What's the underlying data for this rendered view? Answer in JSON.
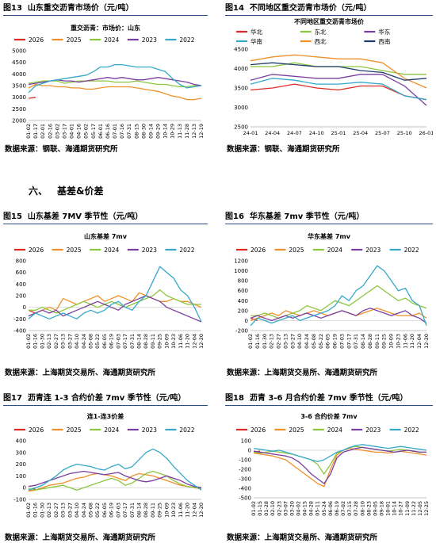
{
  "figures": [
    {
      "number": "图13",
      "title": "山东重交沥青市场价（元/吨）"
    },
    {
      "number": "图14",
      "title": "不同地区重交沥青市场价（元/吨）"
    },
    {
      "number": "图15",
      "title": "山东基差 7MV  季节性（元/吨）"
    },
    {
      "number": "图16",
      "title": "华东基差 7mv  季节性（元/吨）"
    },
    {
      "number": "图17",
      "title": "沥青连 1-3 合约价差 7mv  季节性（元/吨）"
    },
    {
      "number": "图18",
      "title": "沥青 3-6 月合约价差 7mv  季节性（元/吨）"
    }
  ],
  "sources": {
    "row1_left": "数据来源：钢联、海通期货研究所",
    "row1_right": "数据来源：钢联、海通期货研究所",
    "row2_left": "数据来源：上海期货交易所、海通期货研究所",
    "row2_right": "数据来源：上海期货交易所、海通期货研究所",
    "row3_left": "数据来源：上海期货交易所、海通期货研究所",
    "row3_right": "数据来源：上海期货交易所、海通期货研究所"
  },
  "section": {
    "number": "六、",
    "title": "基差&价差"
  },
  "colors": {
    "2026": "#e02a2a",
    "2025": "#f0902a",
    "2024": "#8cc63e",
    "2023": "#7a3fa0",
    "2022": "#35a9c8",
    "华北": "#e02a2a",
    "东北": "#8cc63e",
    "华东": "#7a3fa0",
    "华南": "#35a9c8",
    "西北": "#f0902a",
    "西南": "#1f3b6e"
  },
  "chart_data": [
    {
      "id": "c13",
      "type": "line",
      "title": "重交沥青：市场价：山东",
      "categories": [
        "01-02",
        "01-17",
        "02-01",
        "02-16",
        "03-02",
        "03-17",
        "04-01",
        "04-16",
        "05-02",
        "05-17",
        "06-01",
        "06-16",
        "07-01",
        "07-16",
        "07-31",
        "08-15",
        "08-30",
        "09-14",
        "09-29",
        "10-14",
        "10-29",
        "11-13",
        "11-28",
        "12-13",
        "12-19"
      ],
      "ylim": [
        2000,
        5000
      ],
      "yticks": [
        2000,
        2500,
        3000,
        3500,
        4000,
        4500,
        5000
      ],
      "series": [
        {
          "name": "2026",
          "values": [
            2950,
            3000,
            null,
            null,
            null,
            null,
            null,
            null,
            null,
            null,
            null,
            null,
            null,
            null,
            null,
            null,
            null,
            null,
            null,
            null,
            null,
            null,
            null,
            null,
            null
          ]
        },
        {
          "name": "2025",
          "values": [
            3400,
            3550,
            3500,
            3500,
            3450,
            3450,
            3400,
            3400,
            3350,
            3350,
            3400,
            3450,
            3450,
            3450,
            3450,
            3400,
            3350,
            3300,
            3250,
            3150,
            3050,
            3000,
            2900,
            2900,
            2950
          ]
        },
        {
          "name": "2024",
          "values": [
            3600,
            3650,
            3700,
            3700,
            3700,
            3600,
            3650,
            3700,
            3700,
            3700,
            3700,
            3700,
            3650,
            3650,
            3650,
            3700,
            3650,
            3600,
            3550,
            3550,
            3500,
            3450,
            3450,
            3500,
            3500
          ]
        },
        {
          "name": "2023",
          "values": [
            3550,
            3600,
            3650,
            3700,
            3750,
            3700,
            3700,
            3650,
            3700,
            3750,
            3800,
            3850,
            3800,
            3850,
            3800,
            3750,
            3750,
            3800,
            3850,
            3800,
            3750,
            3700,
            3650,
            3550,
            3500
          ]
        },
        {
          "name": "2022",
          "values": [
            3200,
            3500,
            3600,
            3700,
            3750,
            3800,
            3850,
            3900,
            3950,
            4100,
            4300,
            4300,
            4400,
            4400,
            4350,
            4300,
            4300,
            4300,
            4200,
            4100,
            3800,
            3550,
            3400,
            3450,
            3500
          ]
        }
      ]
    },
    {
      "id": "c14",
      "type": "line",
      "title": "不同地区重交沥青市场价",
      "categories": [
        "24-01",
        "24-04",
        "24-07",
        "24-10",
        "25-01",
        "25-04",
        "25-07",
        "25-10",
        "26-01"
      ],
      "ylim": [
        2500,
        4500
      ],
      "yticks": [
        2500,
        3000,
        3500,
        4000,
        4500
      ],
      "series": [
        {
          "name": "华北",
          "values": [
            3450,
            3500,
            3600,
            3500,
            3450,
            3550,
            3550,
            3300,
            3200
          ]
        },
        {
          "name": "东北",
          "values": [
            4050,
            4050,
            4150,
            4050,
            4050,
            4050,
            3950,
            3850,
            3850
          ]
        },
        {
          "name": "华东",
          "values": [
            3700,
            3850,
            3800,
            3750,
            3750,
            3850,
            3850,
            3550,
            3050
          ]
        },
        {
          "name": "华南",
          "values": [
            3600,
            3750,
            3700,
            3600,
            3600,
            3650,
            3600,
            3300,
            3200
          ]
        },
        {
          "name": "西北",
          "values": [
            4200,
            4300,
            4350,
            4300,
            4250,
            4250,
            4150,
            3750,
            3500
          ]
        },
        {
          "name": "西南",
          "values": [
            4100,
            4150,
            4100,
            4050,
            4050,
            3950,
            3900,
            3700,
            3750
          ]
        }
      ]
    },
    {
      "id": "c15",
      "type": "line",
      "title": "山东基差 7mv",
      "categories": [
        "01-02",
        "01-16",
        "01-30",
        "02-13",
        "02-27",
        "03-13",
        "03-27",
        "04-10",
        "04-24",
        "05-08",
        "05-22",
        "06-05",
        "06-19",
        "07-03",
        "07-17",
        "07-31",
        "08-14",
        "08-28",
        "09-11",
        "09-25",
        "10-09",
        "10-23",
        "11-06",
        "11-20",
        "12-04",
        "12-20"
      ],
      "ylim": [
        -400,
        800
      ],
      "yticks": [
        -400,
        -200,
        0,
        200,
        400,
        600,
        800
      ],
      "series": [
        {
          "name": "2026",
          "values": [
            -50,
            -100,
            null,
            null,
            null,
            null,
            null,
            null,
            null,
            null,
            null,
            null,
            null,
            null,
            null,
            null,
            null,
            null,
            null,
            null,
            null,
            null,
            null,
            null,
            null,
            null
          ]
        },
        {
          "name": "2025",
          "values": [
            -150,
            -100,
            -50,
            0,
            -50,
            150,
            100,
            50,
            100,
            150,
            200,
            100,
            150,
            200,
            150,
            100,
            250,
            200,
            150,
            100,
            100,
            150,
            100,
            100,
            50,
            0
          ]
        },
        {
          "name": "2024",
          "values": [
            -50,
            -50,
            0,
            -50,
            -100,
            -50,
            0,
            50,
            100,
            50,
            0,
            50,
            100,
            50,
            0,
            50,
            100,
            150,
            200,
            300,
            200,
            150,
            100,
            50,
            50,
            50
          ]
        },
        {
          "name": "2023",
          "values": [
            -150,
            -100,
            -50,
            -100,
            -50,
            -150,
            -100,
            -50,
            0,
            50,
            100,
            50,
            0,
            -50,
            50,
            100,
            150,
            200,
            150,
            100,
            0,
            -50,
            -100,
            -150,
            -200,
            -250
          ]
        },
        {
          "name": "2022",
          "values": [
            -200,
            -100,
            -150,
            -200,
            -150,
            -100,
            -150,
            -200,
            -100,
            -50,
            -100,
            -50,
            50,
            100,
            0,
            -50,
            100,
            200,
            450,
            700,
            600,
            500,
            300,
            200,
            0,
            -250
          ]
        }
      ]
    },
    {
      "id": "c16",
      "type": "line",
      "title": "华东基差 7mv",
      "categories": [
        "01-02",
        "01-16",
        "01-30",
        "02-13",
        "02-27",
        "03-13",
        "03-27",
        "04-10",
        "04-24",
        "05-08",
        "05-22",
        "06-05",
        "06-19",
        "07-03",
        "07-17",
        "07-31",
        "08-14",
        "08-28",
        "09-11",
        "09-25",
        "10-09",
        "10-23",
        "11-06",
        "11-20",
        "12-04",
        "12-20"
      ],
      "ylim": [
        -200,
        1200
      ],
      "yticks": [
        -200,
        0,
        200,
        400,
        600,
        800,
        1000,
        1200
      ],
      "series": [
        {
          "name": "2026",
          "values": [
            50,
            0,
            null,
            null,
            null,
            null,
            null,
            null,
            null,
            null,
            null,
            null,
            null,
            null,
            null,
            null,
            null,
            null,
            null,
            null,
            null,
            null,
            null,
            null,
            null,
            null
          ]
        },
        {
          "name": "2025",
          "values": [
            0,
            50,
            100,
            150,
            100,
            200,
            150,
            100,
            150,
            200,
            150,
            100,
            150,
            200,
            150,
            100,
            150,
            200,
            250,
            200,
            150,
            100,
            100,
            100,
            150,
            50
          ]
        },
        {
          "name": "2024",
          "values": [
            100,
            100,
            150,
            100,
            50,
            100,
            150,
            200,
            300,
            250,
            200,
            300,
            400,
            350,
            300,
            400,
            500,
            600,
            700,
            600,
            500,
            400,
            450,
            350,
            300,
            250
          ]
        },
        {
          "name": "2023",
          "values": [
            50,
            100,
            50,
            0,
            50,
            100,
            50,
            100,
            150,
            100,
            50,
            100,
            150,
            200,
            150,
            100,
            200,
            250,
            200,
            150,
            100,
            150,
            200,
            100,
            50,
            -50
          ]
        },
        {
          "name": "2022",
          "values": [
            -100,
            50,
            0,
            -50,
            0,
            50,
            100,
            0,
            50,
            100,
            150,
            200,
            300,
            500,
            400,
            600,
            700,
            900,
            1100,
            1000,
            800,
            600,
            650,
            400,
            300,
            -100
          ]
        }
      ]
    },
    {
      "id": "c17",
      "type": "line",
      "title": "连1-连3价差",
      "categories": [
        "01-02",
        "01-16",
        "01-30",
        "02-13",
        "02-27",
        "03-13",
        "03-27",
        "04-10",
        "04-24",
        "05-08",
        "05-22",
        "06-05",
        "06-19",
        "07-03",
        "07-17",
        "07-31",
        "08-14",
        "08-28",
        "09-11",
        "09-25",
        "10-09",
        "10-23",
        "11-06",
        "11-20",
        "12-04",
        "12-20"
      ],
      "ylim": [
        -100,
        400
      ],
      "yticks": [
        -100,
        0,
        100,
        200,
        300,
        400
      ],
      "series": [
        {
          "name": "2026",
          "values": [
            -20,
            -10,
            null,
            null,
            null,
            null,
            null,
            null,
            null,
            null,
            null,
            null,
            null,
            null,
            null,
            null,
            null,
            null,
            null,
            null,
            null,
            null,
            null,
            null,
            null,
            null
          ]
        },
        {
          "name": "2025",
          "values": [
            -30,
            -20,
            0,
            20,
            30,
            40,
            60,
            80,
            90,
            110,
            120,
            110,
            100,
            80,
            60,
            100,
            120,
            110,
            100,
            80,
            60,
            40,
            20,
            10,
            0,
            -10
          ]
        },
        {
          "name": "2024",
          "values": [
            -10,
            -20,
            -10,
            0,
            10,
            20,
            0,
            -20,
            0,
            20,
            40,
            60,
            80,
            60,
            20,
            40,
            80,
            120,
            140,
            120,
            100,
            60,
            30,
            10,
            0,
            0
          ]
        },
        {
          "name": "2023",
          "values": [
            10,
            20,
            40,
            60,
            80,
            100,
            120,
            130,
            140,
            130,
            120,
            110,
            120,
            130,
            100,
            80,
            60,
            50,
            60,
            80,
            100,
            80,
            60,
            30,
            10,
            0
          ]
        },
        {
          "name": "2022",
          "values": [
            -20,
            0,
            20,
            60,
            100,
            150,
            180,
            200,
            190,
            180,
            160,
            150,
            180,
            200,
            160,
            180,
            240,
            300,
            330,
            300,
            250,
            180,
            120,
            60,
            20,
            -20
          ]
        }
      ]
    },
    {
      "id": "c18",
      "type": "line",
      "title": "3-6 合约价差 7mv",
      "categories": [
        "01-02",
        "01-15",
        "01-28",
        "02-10",
        "02-23",
        "03-07",
        "03-20",
        "04-02",
        "04-15",
        "04-28",
        "05-11",
        "05-24",
        "06-06",
        "06-19",
        "07-02",
        "07-15",
        "07-28",
        "08-10",
        "08-23",
        "09-05",
        "09-18",
        "10-01",
        "10-14",
        "10-27",
        "11-09",
        "11-22",
        "12-05",
        "12-25"
      ],
      "ylim": [
        -500,
        100
      ],
      "yticks": [
        -500,
        -400,
        -300,
        -200,
        -100,
        0,
        100
      ],
      "series": [
        {
          "name": "2026",
          "values": [
            -20,
            -10,
            null,
            null,
            null,
            null,
            null,
            null,
            null,
            null,
            null,
            null,
            null,
            null,
            null,
            null,
            null,
            null,
            null,
            null,
            null,
            null,
            null,
            null,
            null,
            null,
            null,
            null
          ]
        },
        {
          "name": "2025",
          "values": [
            -30,
            -40,
            -50,
            -60,
            -80,
            -100,
            -150,
            -200,
            -250,
            -300,
            -350,
            -380,
            -200,
            -50,
            0,
            20,
            10,
            0,
            -10,
            -20,
            -20,
            -30,
            -20,
            -10,
            -20,
            -30,
            -40,
            -50
          ]
        },
        {
          "name": "2024",
          "values": [
            -20,
            -30,
            -20,
            -10,
            -20,
            -30,
            -40,
            -60,
            -80,
            -100,
            -150,
            -250,
            -150,
            -30,
            0,
            30,
            40,
            30,
            20,
            10,
            0,
            -10,
            0,
            10,
            0,
            -10,
            -20,
            -20
          ]
        },
        {
          "name": "2023",
          "values": [
            -10,
            -20,
            -30,
            -40,
            -50,
            -60,
            -80,
            -120,
            -180,
            -250,
            -300,
            -350,
            -250,
            -80,
            -20,
            0,
            20,
            30,
            20,
            10,
            0,
            -10,
            -20,
            -10,
            0,
            -10,
            -20,
            -20
          ]
        },
        {
          "name": "2022",
          "values": [
            20,
            10,
            0,
            -10,
            0,
            -20,
            -40,
            -60,
            -80,
            -100,
            -120,
            -100,
            -60,
            -20,
            0,
            30,
            50,
            60,
            50,
            40,
            30,
            20,
            30,
            40,
            30,
            20,
            10,
            0
          ]
        }
      ]
    }
  ]
}
